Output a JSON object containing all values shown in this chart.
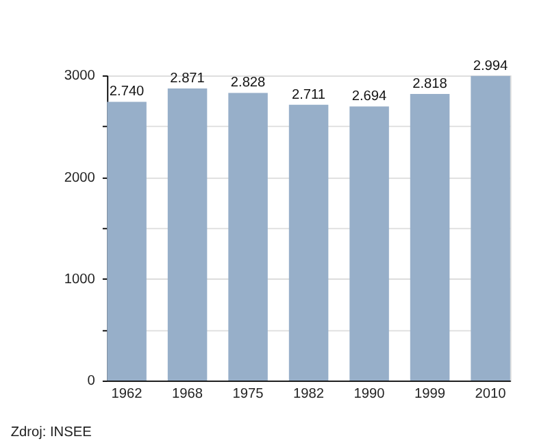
{
  "chart_data": {
    "type": "bar",
    "categories": [
      "1962",
      "1968",
      "1975",
      "1982",
      "1990",
      "1999",
      "2010"
    ],
    "values": [
      2740,
      2871,
      2828,
      2711,
      2694,
      2818,
      2994
    ],
    "value_labels": [
      "2.740",
      "2.871",
      "2.828",
      "2.711",
      "2.694",
      "2.818",
      "2.994"
    ],
    "color": "#97afc9",
    "ylim": [
      0,
      3000
    ],
    "yticks": [
      0,
      {
        "value": 500,
        "label": null
      },
      1000,
      {
        "value": 1500,
        "label": null
      },
      2000,
      {
        "value": 2500,
        "label": null
      },
      3000
    ],
    "grid": "y",
    "annotations": [
      "Zdroj: INSEE"
    ]
  }
}
